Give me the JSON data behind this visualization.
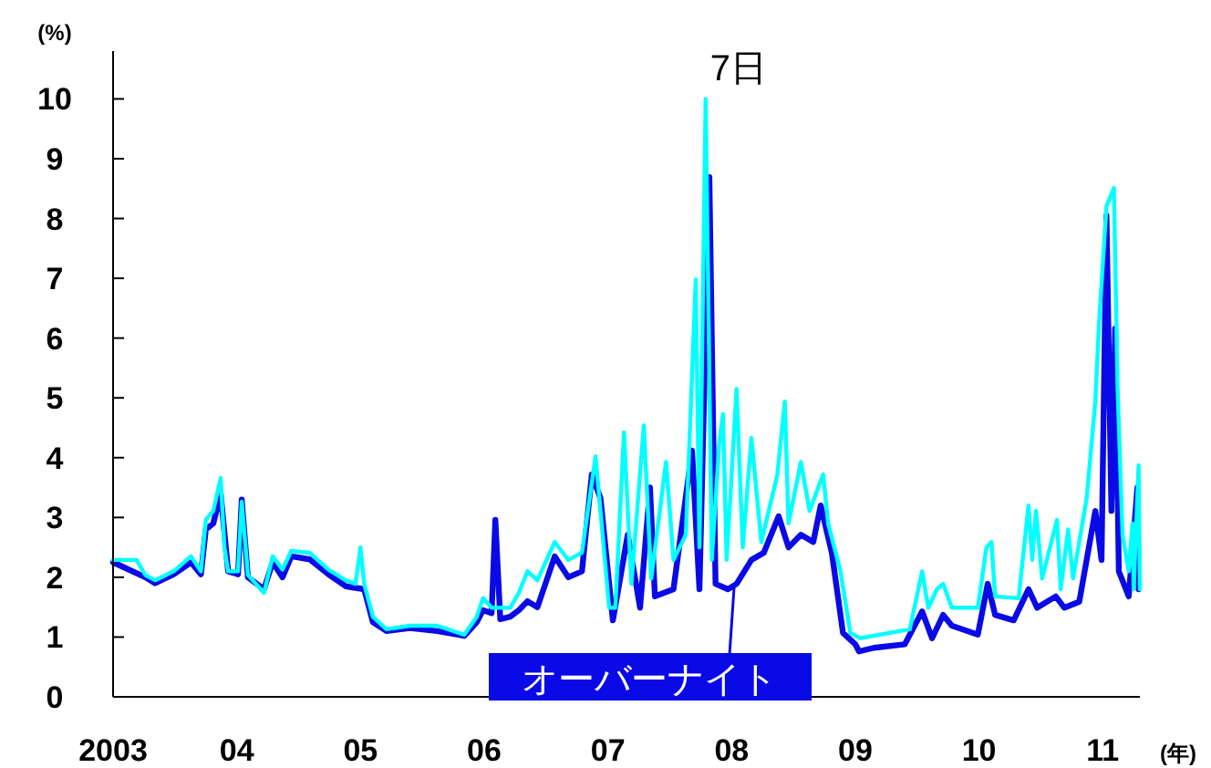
{
  "chart_data": {
    "type": "line",
    "xlabel": "(年)",
    "ylabel": "(%)",
    "xlim": [
      2003,
      2011.3
    ],
    "ylim": [
      0,
      10.8
    ],
    "xticks": [
      {
        "value": 2003,
        "label": "2003"
      },
      {
        "value": 2004,
        "label": "04"
      },
      {
        "value": 2005,
        "label": "05"
      },
      {
        "value": 2006,
        "label": "06"
      },
      {
        "value": 2007,
        "label": "07"
      },
      {
        "value": 2008,
        "label": "08"
      },
      {
        "value": 2009,
        "label": "09"
      },
      {
        "value": 2010,
        "label": "10"
      },
      {
        "value": 2011,
        "label": "11"
      }
    ],
    "yticks": [
      0,
      1,
      2,
      3,
      4,
      5,
      6,
      7,
      8,
      9,
      10
    ],
    "grid": false,
    "legend": "bottom",
    "line_style": "solid",
    "marker": "none",
    "series": [
      {
        "name": "オーバーナイト",
        "color": "#0a0ae6",
        "x": [
          2003.0,
          2003.26,
          2003.34,
          2003.49,
          2003.63,
          2003.71,
          2003.75,
          2003.81,
          2003.87,
          2003.93,
          2004.01,
          2004.04,
          2004.09,
          2004.22,
          2004.29,
          2004.37,
          2004.44,
          2004.59,
          2004.74,
          2004.88,
          2005.03,
          2005.1,
          2005.21,
          2005.4,
          2005.62,
          2005.84,
          2005.94,
          2005.99,
          2006.06,
          2006.09,
          2006.13,
          2006.21,
          2006.28,
          2006.35,
          2006.43,
          2006.57,
          2006.68,
          2006.79,
          2006.87,
          2006.94,
          2007.04,
          2007.16,
          2007.26,
          2007.34,
          2007.38,
          2007.53,
          2007.68,
          2007.74,
          2007.82,
          2007.87,
          2007.97,
          2008.04,
          2008.16,
          2008.26,
          2008.38,
          2008.46,
          2008.56,
          2008.66,
          2008.72,
          2008.81,
          2008.9,
          2009.0,
          2009.03,
          2009.15,
          2009.4,
          2009.54,
          2009.62,
          2009.71,
          2009.78,
          2009.99,
          2010.07,
          2010.13,
          2010.28,
          2010.4,
          2010.47,
          2010.62,
          2010.69,
          2010.81,
          2010.94,
          2010.99,
          2011.03,
          2011.07,
          2011.1,
          2011.13,
          2011.21,
          2011.28,
          2011.29
        ],
        "values": [
          2.25,
          2.0,
          1.9,
          2.05,
          2.25,
          2.05,
          2.8,
          2.9,
          3.4,
          2.1,
          2.05,
          3.3,
          2.0,
          1.8,
          2.25,
          2.0,
          2.35,
          2.3,
          2.05,
          1.85,
          1.8,
          1.25,
          1.1,
          1.15,
          1.1,
          1.02,
          1.25,
          1.45,
          1.4,
          2.96,
          1.3,
          1.34,
          1.45,
          1.6,
          1.5,
          2.35,
          2.0,
          2.1,
          3.72,
          3.32,
          1.28,
          2.71,
          1.49,
          3.5,
          1.68,
          1.8,
          4.12,
          1.8,
          8.69,
          1.89,
          1.8,
          1.89,
          2.29,
          2.41,
          3.02,
          2.5,
          2.71,
          2.59,
          3.2,
          2.41,
          1.07,
          0.88,
          0.76,
          0.82,
          0.88,
          1.43,
          0.98,
          1.37,
          1.19,
          1.04,
          1.89,
          1.37,
          1.28,
          1.8,
          1.49,
          1.68,
          1.49,
          1.59,
          3.11,
          2.29,
          8.05,
          3.11,
          6.16,
          2.1,
          1.68,
          3.5,
          1.8
        ]
      },
      {
        "name": "7日",
        "color": "#00ffff",
        "x": [
          2003.0,
          2003.19,
          2003.26,
          2003.34,
          2003.49,
          2003.63,
          2003.71,
          2003.75,
          2003.81,
          2003.87,
          2003.9,
          2003.93,
          2004.01,
          2004.04,
          2004.09,
          2004.22,
          2004.29,
          2004.37,
          2004.44,
          2004.59,
          2004.74,
          2004.88,
          2004.96,
          2005.0,
          2005.03,
          2005.1,
          2005.21,
          2005.4,
          2005.62,
          2005.84,
          2005.94,
          2005.99,
          2006.06,
          2006.13,
          2006.21,
          2006.28,
          2006.35,
          2006.43,
          2006.57,
          2006.68,
          2006.79,
          2006.9,
          2006.94,
          2007.01,
          2007.06,
          2007.13,
          2007.19,
          2007.29,
          2007.35,
          2007.47,
          2007.53,
          2007.63,
          2007.71,
          2007.74,
          2007.79,
          2007.84,
          2007.9,
          2007.93,
          2007.96,
          2008.04,
          2008.09,
          2008.16,
          2008.24,
          2008.37,
          2008.43,
          2008.46,
          2008.56,
          2008.63,
          2008.74,
          2008.78,
          2008.88,
          2008.96,
          2009.04,
          2009.44,
          2009.54,
          2009.59,
          2009.66,
          2009.71,
          2009.78,
          2009.99,
          2010.06,
          2010.1,
          2010.13,
          2010.32,
          2010.4,
          2010.43,
          2010.46,
          2010.51,
          2010.63,
          2010.66,
          2010.72,
          2010.76,
          2010.87,
          2010.94,
          2010.97,
          2011.03,
          2011.09,
          2011.12,
          2011.16,
          2011.21,
          2011.24,
          2011.25,
          2011.29,
          2011.3
        ],
        "values": [
          2.29,
          2.29,
          2.04,
          1.95,
          2.1,
          2.35,
          2.1,
          2.96,
          3.11,
          3.66,
          2.5,
          2.1,
          2.1,
          3.26,
          2.04,
          1.74,
          2.35,
          2.13,
          2.44,
          2.41,
          2.13,
          1.95,
          1.89,
          2.5,
          1.89,
          1.34,
          1.13,
          1.19,
          1.19,
          1.04,
          1.34,
          1.65,
          1.49,
          1.49,
          1.49,
          1.74,
          2.1,
          1.95,
          2.59,
          2.29,
          2.41,
          4.02,
          3.11,
          1.49,
          1.49,
          4.42,
          1.89,
          4.54,
          1.98,
          3.93,
          2.29,
          2.71,
          6.98,
          2.5,
          10.0,
          2.29,
          4.24,
          4.73,
          2.29,
          5.15,
          2.5,
          4.33,
          2.59,
          3.72,
          4.94,
          2.9,
          3.93,
          3.11,
          3.72,
          2.9,
          2.1,
          1.07,
          0.98,
          1.13,
          2.1,
          1.49,
          1.8,
          1.89,
          1.49,
          1.49,
          2.5,
          2.59,
          1.68,
          1.65,
          3.2,
          2.29,
          3.11,
          1.98,
          2.96,
          1.8,
          2.8,
          1.98,
          3.32,
          4.94,
          6.25,
          8.2,
          8.51,
          5.15,
          2.71,
          2.1,
          2.9,
          1.8,
          3.87,
          1.8
        ]
      }
    ]
  }
}
